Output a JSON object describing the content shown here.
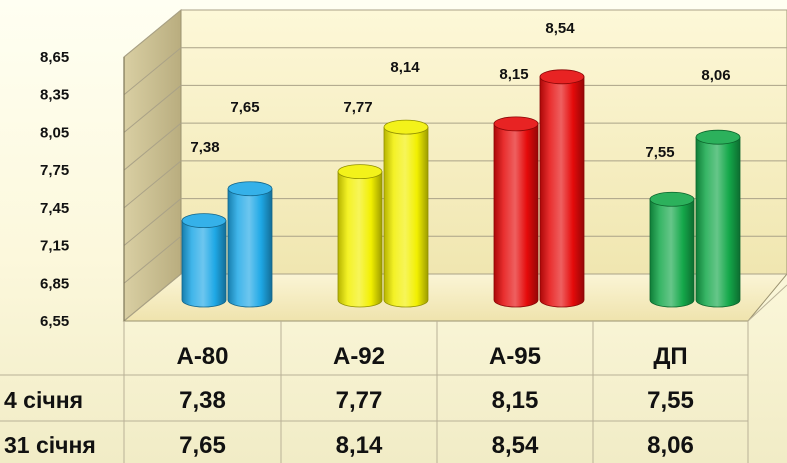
{
  "chart_data": {
    "type": "bar",
    "title": "",
    "xlabel": "",
    "ylabel": "",
    "ylim": [
      6.55,
      8.65
    ],
    "yticks": [
      "6,55",
      "6,85",
      "7,15",
      "7,45",
      "7,75",
      "8,05",
      "8,35",
      "8,65"
    ],
    "categories": [
      "А-80",
      "А-92",
      "А-95",
      "ДП"
    ],
    "series": [
      {
        "name": "4 січня",
        "values": [
          7.38,
          7.77,
          8.15,
          7.55
        ],
        "labels": [
          "7,38",
          "7,77",
          "8,15",
          "7,55"
        ]
      },
      {
        "name": "31 січня",
        "values": [
          7.65,
          8.14,
          8.54,
          8.06
        ],
        "labels": [
          "7,65",
          "8,14",
          "8,54",
          "8,06"
        ]
      }
    ],
    "colors": {
      "А-80": "#1ea8e6",
      "А-92": "#f2f000",
      "А-95": "#e50a0a",
      "ДП": "#14a84a"
    },
    "grid": true,
    "legend": "data table below chart",
    "style": "3d-cylinder"
  }
}
